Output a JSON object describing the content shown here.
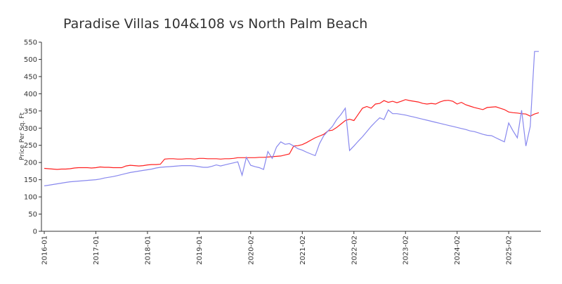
{
  "chart_data": {
    "type": "line",
    "title": "Paradise Villas 104&108 vs North Palm Beach",
    "y_label": "Price Per Sq. Ft",
    "categories": [
      "2016-01",
      null,
      null,
      null,
      null,
      null,
      null,
      null,
      null,
      null,
      null,
      null,
      "2017-01",
      null,
      null,
      null,
      null,
      null,
      null,
      null,
      null,
      null,
      null,
      null,
      "2018-01",
      null,
      null,
      null,
      null,
      null,
      null,
      null,
      null,
      null,
      null,
      null,
      "2019-01",
      null,
      null,
      null,
      null,
      null,
      null,
      null,
      null,
      null,
      null,
      null,
      "2020-02",
      null,
      null,
      null,
      null,
      null,
      null,
      null,
      null,
      null,
      null,
      null,
      "2021-02",
      null,
      null,
      null,
      null,
      null,
      null,
      null,
      null,
      null,
      null,
      null,
      "2022-02",
      null,
      null,
      null,
      null,
      null,
      null,
      null,
      null,
      null,
      null,
      null,
      "2023-02",
      null,
      null,
      null,
      null,
      null,
      null,
      null,
      null,
      null,
      null,
      null,
      "2024-02",
      null,
      null,
      null,
      null,
      null,
      null,
      null,
      null,
      null,
      null,
      null,
      "2025-02",
      null,
      null,
      null,
      null,
      null,
      null,
      null
    ],
    "series": [
      {
        "color": "#ff2020",
        "values": [
          183,
          182,
          181,
          180,
          181,
          181,
          182,
          184,
          185,
          185,
          185,
          184,
          185,
          187,
          186,
          186,
          185,
          185,
          185,
          190,
          192,
          191,
          190,
          191,
          193,
          194,
          194,
          195,
          210,
          211,
          211,
          210,
          210,
          211,
          211,
          210,
          212,
          212,
          211,
          211,
          211,
          210,
          211,
          211,
          212,
          214,
          214,
          214,
          214,
          214,
          215,
          215,
          216,
          217,
          218,
          219,
          222,
          225,
          248,
          249,
          252,
          258,
          265,
          272,
          277,
          282,
          292,
          294,
          302,
          312,
          322,
          326,
          322,
          340,
          358,
          363,
          358,
          370,
          372,
          380,
          375,
          378,
          374,
          378,
          383,
          380,
          378,
          376,
          372,
          370,
          372,
          370,
          376,
          380,
          381,
          378,
          370,
          375,
          368,
          364,
          360,
          357,
          354,
          360,
          361,
          362,
          358,
          354,
          347,
          345,
          344,
          342,
          341,
          335,
          341,
          345
        ]
      },
      {
        "color": "#8888ee",
        "values": [
          132,
          134,
          136,
          138,
          140,
          142,
          144,
          145,
          146,
          147,
          148,
          149,
          150,
          152,
          155,
          157,
          159,
          162,
          165,
          168,
          171,
          173,
          175,
          177,
          179,
          181,
          184,
          186,
          187,
          188,
          189,
          190,
          191,
          191,
          191,
          190,
          188,
          186,
          186,
          189,
          193,
          190,
          193,
          196,
          199,
          202,
          163,
          215,
          192,
          188,
          185,
          180,
          232,
          212,
          245,
          260,
          253,
          255,
          248,
          240,
          236,
          230,
          225,
          220,
          255,
          278,
          292,
          305,
          325,
          340,
          358,
          235,
          248,
          262,
          275,
          290,
          305,
          318,
          330,
          325,
          353,
          342,
          342,
          340,
          338,
          335,
          332,
          329,
          326,
          323,
          320,
          317,
          314,
          311,
          308,
          305,
          302,
          299,
          296,
          292,
          290,
          286,
          282,
          279,
          278,
          272,
          266,
          260,
          315,
          292,
          272,
          352,
          248,
          305,
          523,
          523
        ]
      }
    ],
    "ylim": [
      0,
      550
    ],
    "yticks": [
      0,
      50,
      100,
      150,
      200,
      250,
      300,
      350,
      400,
      450,
      500,
      550
    ]
  }
}
